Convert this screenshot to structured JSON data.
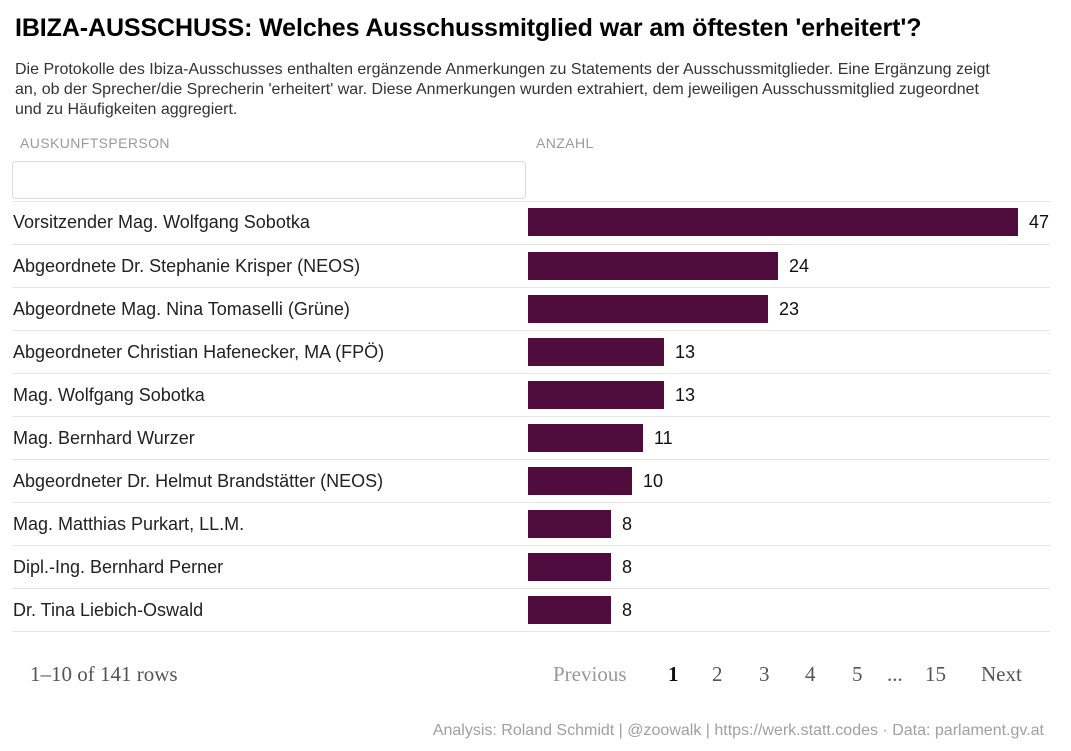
{
  "title": "IBIZA-AUSSCHUSS: Welches Ausschussmitglied war am öftesten 'erheitert'?",
  "description": "Die Protokolle des Ibiza-Ausschusses enthalten ergänzende Anmerkungen zu Statements der Ausschussmitglieder. Eine Ergänzung zeigt an, ob der Sprecher/die Sprecherin 'erheitert' war. Diese Anmerkungen wurden extrahiert, dem jeweiligen Ausschussmitglied zugeordnet und zu Häufigkeiten aggregiert.",
  "columns": {
    "name": "AUSKUNFTSPERSON",
    "count": "ANZAHL"
  },
  "filter": {
    "value": "",
    "placeholder": ""
  },
  "bar_color": "#4f0c3c",
  "max_value": 47,
  "rows": [
    {
      "name": "Vorsitzender Mag. Wolfgang Sobotka",
      "value": 47
    },
    {
      "name": "Abgeordnete Dr. Stephanie Krisper (NEOS)",
      "value": 24
    },
    {
      "name": "Abgeordnete Mag. Nina Tomaselli (Grüne)",
      "value": 23
    },
    {
      "name": "Abgeordneter Christian Hafenecker, MA (FPÖ)",
      "value": 13
    },
    {
      "name": "Mag. Wolfgang Sobotka",
      "value": 13
    },
    {
      "name": "Mag. Bernhard Wurzer",
      "value": 11
    },
    {
      "name": "Abgeordneter Dr. Helmut Brandstätter (NEOS)",
      "value": 10
    },
    {
      "name": "Mag. Matthias Purkart, LL.M.",
      "value": 8
    },
    {
      "name": "Dipl.-Ing. Bernhard Perner",
      "value": 8
    },
    {
      "name": "Dr. Tina Liebich-Oswald",
      "value": 8
    }
  ],
  "pagination": {
    "info": "1–10 of 141 rows",
    "previous": "Previous",
    "pages": [
      "1",
      "2",
      "3",
      "4",
      "5"
    ],
    "ellipsis": "...",
    "last": "15",
    "next": "Next",
    "current": "1"
  },
  "credits": "Analysis: Roland Schmidt | @zoowalk | https://werk.statt.codes · Data: parlament.gv.at"
}
